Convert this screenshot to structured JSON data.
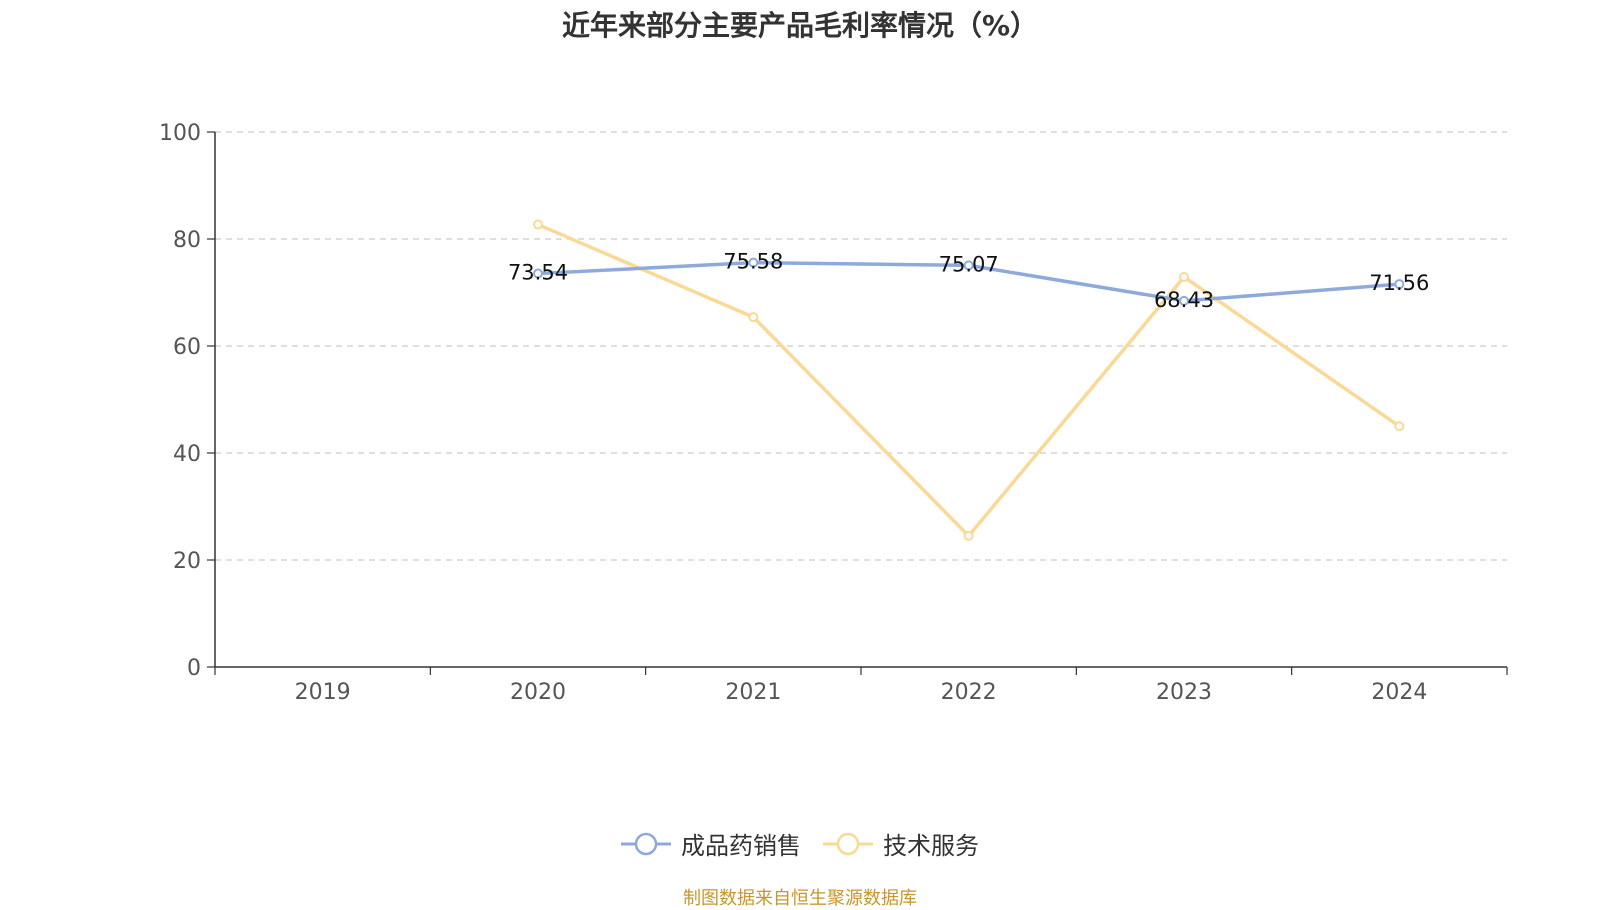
{
  "chart_data": {
    "type": "line",
    "title": "近年来部分主要产品毛利率情况（%）",
    "categories": [
      "2019",
      "2020",
      "2021",
      "2022",
      "2023",
      "2024"
    ],
    "ylim": [
      0,
      100
    ],
    "yticks": [
      0,
      20,
      40,
      60,
      80,
      100
    ],
    "grid": true,
    "legend_position": "bottom",
    "series": [
      {
        "name": "成品药销售",
        "color": "#8eaadc",
        "values": [
          null,
          73.54,
          75.58,
          75.07,
          68.43,
          71.56
        ],
        "labels": [
          "",
          "73.54",
          "75.58",
          "75.07",
          "68.43",
          "71.56"
        ]
      },
      {
        "name": "技术服务",
        "color": "#f9d995",
        "values": [
          null,
          82.7,
          65.4,
          24.5,
          72.9,
          45.0
        ],
        "labels": [
          "",
          "",
          "",
          "",
          "",
          ""
        ]
      }
    ]
  },
  "source_note": "制图数据来自恒生聚源数据库"
}
